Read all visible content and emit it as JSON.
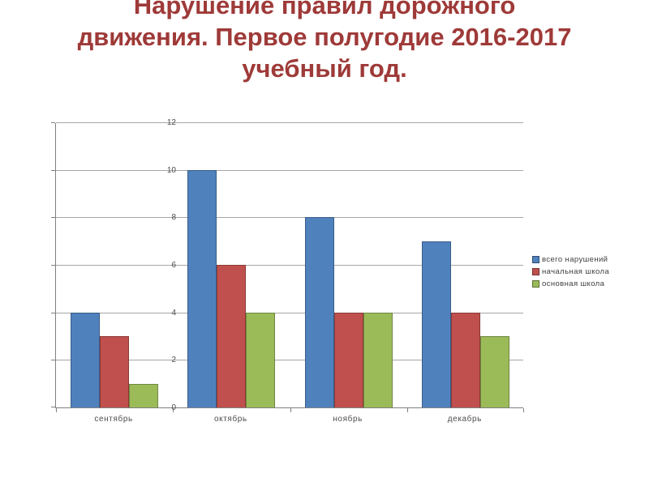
{
  "slide": {
    "title": "Нарушение правил дорожного движения. Первое полугодие 2016-2017 учебный год.",
    "title_lines": [
      "Нарушение правил дорожного",
      "движения. Первое полугодие 2016-2017",
      "учебный год."
    ],
    "title_color": "#9e3a38",
    "background_color": "#ffffff"
  },
  "chart_data": {
    "type": "bar",
    "title": "",
    "xlabel": "",
    "ylabel": "",
    "categories": [
      "сентябрь",
      "октябрь",
      "ноябрь",
      "декабрь"
    ],
    "series": [
      {
        "name": "всего нарушений",
        "color": "#4f81bd",
        "values": [
          4,
          10,
          8,
          7
        ]
      },
      {
        "name": "начальная школа",
        "color": "#c0504d",
        "values": [
          3,
          6,
          4,
          4
        ]
      },
      {
        "name": "основная школа",
        "color": "#9bbb59",
        "values": [
          1,
          4,
          4,
          3
        ]
      }
    ],
    "ylim": [
      0,
      12
    ],
    "yticks": [
      0,
      2,
      4,
      6,
      8,
      10,
      12
    ],
    "grid": true,
    "legend_position": "right",
    "gridline_color": "#a6a6a6",
    "axis_color": "#808080"
  }
}
